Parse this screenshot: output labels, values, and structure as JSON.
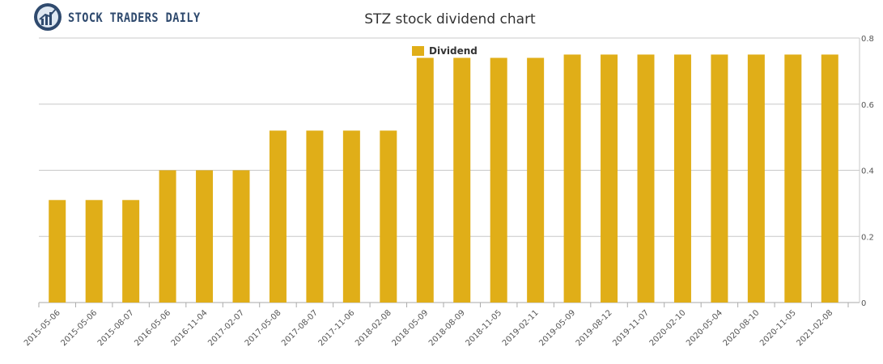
{
  "brand": {
    "name": "STOCK TRADERS DAILY"
  },
  "colors": {
    "bar": "#e0ae18",
    "grid": "#c8c8c8",
    "axis": "#aaaaaa",
    "brand": "#2f4a6e"
  },
  "chart_data": {
    "type": "bar",
    "title": "STZ stock dividend chart",
    "xlabel": "",
    "ylabel": "",
    "legend": {
      "position": "top-center",
      "entries": [
        "Dividend"
      ]
    },
    "grid": true,
    "ylim": [
      0,
      0.8
    ],
    "yticks": [
      "0",
      "0.2",
      "0.4",
      "0.6",
      "0.8"
    ],
    "ytick_values": [
      0,
      0.2,
      0.4,
      0.6,
      0.8
    ],
    "categories": [
      "2015-05-06",
      "2015-05-06",
      "2015-08-07",
      "2016-05-06",
      "2016-11-04",
      "2017-02-07",
      "2017-05-08",
      "2017-08-07",
      "2017-11-06",
      "2018-02-08",
      "2018-05-09",
      "2018-08-09",
      "2018-11-05",
      "2019-02-11",
      "2019-05-09",
      "2019-08-12",
      "2019-11-07",
      "2020-02-10",
      "2020-05-04",
      "2020-08-10",
      "2020-11-05",
      "2021-02-08"
    ],
    "series": [
      {
        "name": "Dividend",
        "values": [
          0.31,
          0.31,
          0.31,
          0.4,
          0.4,
          0.4,
          0.52,
          0.52,
          0.52,
          0.52,
          0.74,
          0.74,
          0.74,
          0.74,
          0.75,
          0.75,
          0.75,
          0.75,
          0.75,
          0.75,
          0.75,
          0.75
        ]
      }
    ]
  }
}
